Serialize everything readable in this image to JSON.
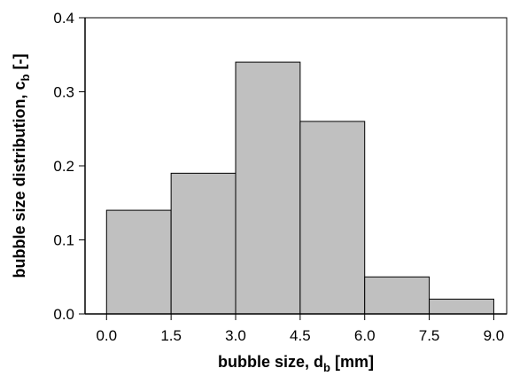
{
  "chart_data": {
    "type": "bar",
    "bins": [
      {
        "from": 0.0,
        "to": 1.5,
        "value": 0.14
      },
      {
        "from": 1.5,
        "to": 3.0,
        "value": 0.19
      },
      {
        "from": 3.0,
        "to": 4.5,
        "value": 0.34
      },
      {
        "from": 4.5,
        "to": 6.0,
        "value": 0.26
      },
      {
        "from": 6.0,
        "to": 7.5,
        "value": 0.05
      },
      {
        "from": 7.5,
        "to": 9.0,
        "value": 0.02
      }
    ],
    "xticks": [
      "0.0",
      "1.5",
      "3.0",
      "4.5",
      "6.0",
      "7.5",
      "9.0"
    ],
    "yticks": [
      "0.0",
      "0.1",
      "0.2",
      "0.3",
      "0.4"
    ],
    "xlim": [
      -0.5,
      9.3
    ],
    "ylim": [
      0,
      0.4
    ],
    "xlabel": {
      "main": "bubble size, d",
      "sub": "b",
      "unit": " [mm]"
    },
    "ylabel": {
      "main": "bubble size distribution, c",
      "sub": "b",
      "unit": " [-]"
    },
    "bar_color": "#c0c0c0",
    "grid": false,
    "legend": false
  }
}
